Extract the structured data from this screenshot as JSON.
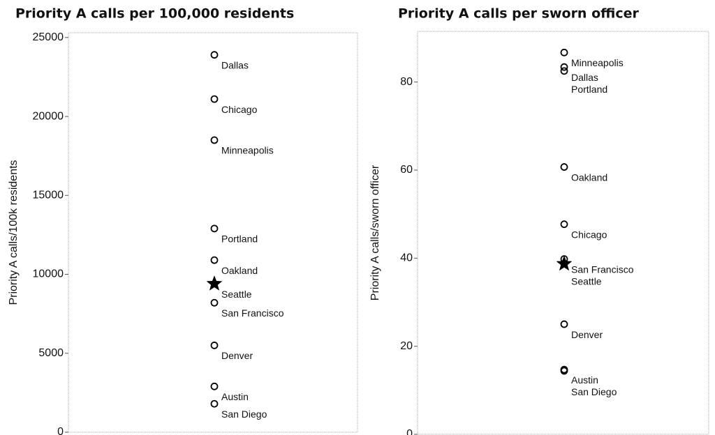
{
  "chart_data": [
    {
      "type": "scatter",
      "title": "Priority A calls per 100,000 residents",
      "ylabel": "Priority A calls/100k residents",
      "ylim": [
        0,
        25300
      ],
      "yticks": [
        0,
        5000,
        10000,
        15000,
        20000,
        25000
      ],
      "color": "#000000",
      "points": [
        {
          "label": "Dallas",
          "value": 23900,
          "marker": "circle"
        },
        {
          "label": "Chicago",
          "value": 21100,
          "marker": "circle"
        },
        {
          "label": "Minneapolis",
          "value": 18500,
          "marker": "circle"
        },
        {
          "label": "Portland",
          "value": 12900,
          "marker": "circle"
        },
        {
          "label": "Oakland",
          "value": 10900,
          "marker": "circle"
        },
        {
          "label": "San Francisco",
          "value": 8200,
          "marker": "circle"
        },
        {
          "label": "Seattle",
          "value": 9400,
          "marker": "star"
        },
        {
          "label": "Denver",
          "value": 5500,
          "marker": "circle"
        },
        {
          "label": "Austin",
          "value": 2900,
          "marker": "circle"
        },
        {
          "label": "San Diego",
          "value": 1800,
          "marker": "circle"
        }
      ]
    },
    {
      "type": "scatter",
      "title": "Priority A calls per sworn officer",
      "ylabel": "Priority A calls/sworn officer",
      "ylim": [
        0,
        91.5
      ],
      "yticks": [
        0,
        20,
        40,
        60,
        80
      ],
      "color": "#000000",
      "points": [
        {
          "label": "Minneapolis",
          "value": 86.7,
          "marker": "circle"
        },
        {
          "label": "Dallas",
          "value": 83.4,
          "marker": "circle"
        },
        {
          "label": "Portland",
          "value": 82.5,
          "marker": "circle"
        },
        {
          "label": "Oakland",
          "value": 60.7,
          "marker": "circle"
        },
        {
          "label": "Chicago",
          "value": 47.7,
          "marker": "circle"
        },
        {
          "label": "Seattle",
          "value": 38.7,
          "marker": "star"
        },
        {
          "label": "San Francisco",
          "value": 39.8,
          "marker": "circle"
        },
        {
          "label": "Denver",
          "value": 25,
          "marker": "circle"
        },
        {
          "label": "Austin",
          "value": 14.7,
          "marker": "circle"
        },
        {
          "label": "San Diego",
          "value": 14.4,
          "marker": "circle"
        }
      ]
    }
  ]
}
